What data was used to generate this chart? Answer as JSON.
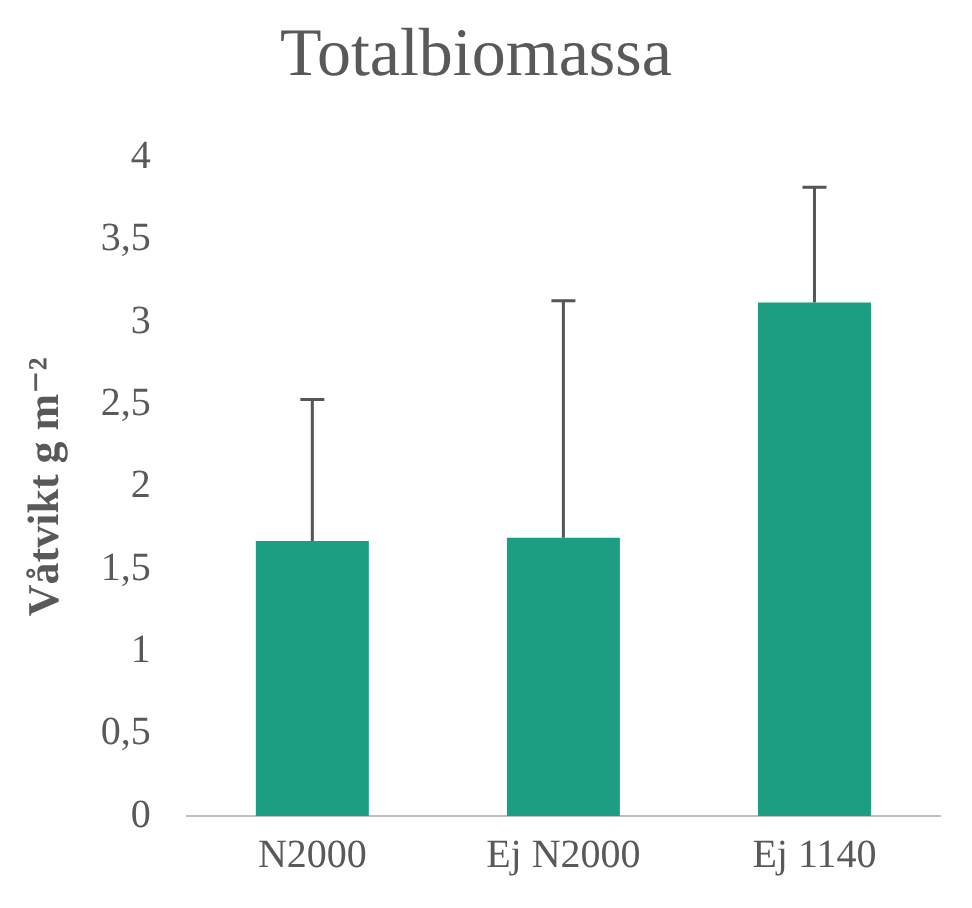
{
  "chart_data": {
    "type": "bar",
    "title": "Totalbiomassa",
    "ylabel": "Våtvikt g m⁻²",
    "categories": [
      "N2000",
      "Ej N2000",
      "Ej 1140"
    ],
    "values": [
      1.67,
      1.69,
      3.12
    ],
    "errors": [
      [
        1.67,
        2.53
      ],
      [
        1.69,
        3.13
      ],
      [
        3.12,
        3.82
      ]
    ],
    "color": "#1b9e82",
    "ylim": [
      0,
      4
    ],
    "yticks": [
      0,
      {
        "value": 0.5,
        "label": "0,5"
      },
      1,
      {
        "value": 1.5,
        "label": "1,5"
      },
      2,
      {
        "value": 2.5,
        "label": "2,5"
      },
      3,
      {
        "value": 3.5,
        "label": "3,5"
      },
      4
    ],
    "grid": false,
    "legend": false
  }
}
